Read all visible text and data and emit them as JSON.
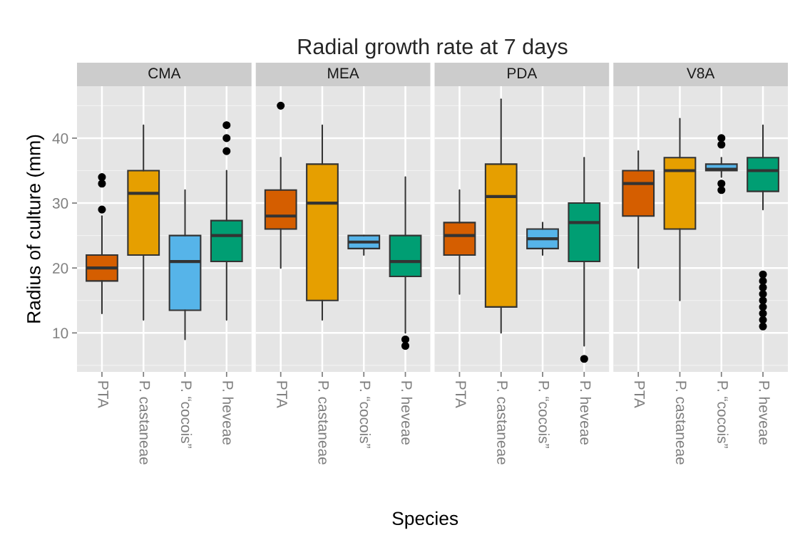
{
  "chart_data": [
    {
      "type": "box",
      "title": "CMA",
      "ylabel": "Radius of culture (mm)",
      "annotations": [
        "Radial growth rate at 7 days"
      ],
      "categories": [
        "PTA",
        "P. castaneae",
        "P. “cocois”",
        "P. heveae"
      ],
      "colors": [
        "#d55e00",
        "#e69f00",
        "#56b4e9",
        "#009e73"
      ],
      "ylim": [
        4,
        48
      ],
      "yticks": [
        10,
        20,
        30,
        40
      ],
      "grid": true,
      "boxes": [
        {
          "low": 13,
          "q1": 18,
          "median": 20,
          "q3": 22,
          "high": 28,
          "outliers": [
            34,
            33,
            29
          ]
        },
        {
          "low": 12,
          "q1": 22,
          "median": 31.5,
          "q3": 35,
          "high": 42
        },
        {
          "low": 9,
          "q1": 13.5,
          "median": 21,
          "q3": 25,
          "high": 32
        },
        {
          "low": 12,
          "q1": 21,
          "median": 25,
          "q3": 27.3,
          "high": 35,
          "outliers": [
            42,
            40,
            38
          ]
        }
      ]
    },
    {
      "type": "box",
      "title": "MEA",
      "xlabel": "Species",
      "categories": [
        "PTA",
        "P. castaneae",
        "P. “cocois”",
        "P. heveae"
      ],
      "colors": [
        "#d55e00",
        "#e69f00",
        "#56b4e9",
        "#009e73"
      ],
      "ylim": [
        4,
        48
      ],
      "yticks": [
        10,
        20,
        30,
        40
      ],
      "grid": true,
      "tick_labels": "x",
      "boxes": [
        {
          "low": 20,
          "q1": 26,
          "median": 28,
          "q3": 32,
          "high": 37,
          "outliers": [
            45
          ]
        },
        {
          "low": 12,
          "q1": 15,
          "median": 30,
          "q3": 36,
          "high": 42
        },
        {
          "low": 22,
          "q1": 23,
          "median": 24,
          "q3": 25,
          "high": 25
        },
        {
          "low": 10,
          "q1": 18.7,
          "median": 21,
          "q3": 25,
          "high": 34,
          "outliers": [
            9,
            8
          ]
        }
      ]
    },
    {
      "type": "box",
      "title": "PDA",
      "categories": [
        "PTA",
        "P. castaneae",
        "P. “cocois”",
        "P. heveae"
      ],
      "colors": [
        "#d55e00",
        "#e69f00",
        "#56b4e9",
        "#009e73"
      ],
      "ylim": [
        4,
        48
      ],
      "yticks": [
        10,
        20,
        30,
        40
      ],
      "grid": true,
      "tick_labels": "x",
      "boxes": [
        {
          "low": 16,
          "q1": 22,
          "median": 25,
          "q3": 27,
          "high": 32
        },
        {
          "low": 10,
          "q1": 14,
          "median": 31,
          "q3": 36,
          "high": 46
        },
        {
          "low": 22,
          "q1": 23,
          "median": 24.5,
          "q3": 26,
          "high": 27
        },
        {
          "low": 8,
          "q1": 21,
          "median": 27,
          "q3": 30,
          "high": 37,
          "outliers": [
            6
          ]
        }
      ]
    },
    {
      "type": "box",
      "title": "V8A",
      "categories": [
        "PTA",
        "P. castaneae",
        "P. “cocois”",
        "P. heveae"
      ],
      "colors": [
        "#d55e00",
        "#e69f00",
        "#56b4e9",
        "#009e73"
      ],
      "ylim": [
        4,
        48
      ],
      "yticks": [
        10,
        20,
        30,
        40
      ],
      "grid": true,
      "tick_labels": "x",
      "boxes": [
        {
          "low": 20,
          "q1": 28,
          "median": 33,
          "q3": 35,
          "high": 38
        },
        {
          "low": 15,
          "q1": 26,
          "median": 35,
          "q3": 37,
          "high": 43
        },
        {
          "low": 34,
          "q1": 35,
          "median": 35.2,
          "q3": 36,
          "high": 37,
          "outliers": [
            40,
            39,
            33,
            32
          ]
        },
        {
          "low": 29,
          "q1": 31.8,
          "median": 35,
          "q3": 37,
          "high": 42,
          "outliers": [
            19,
            18,
            17,
            16,
            15,
            14,
            13,
            12,
            11
          ]
        }
      ]
    }
  ]
}
